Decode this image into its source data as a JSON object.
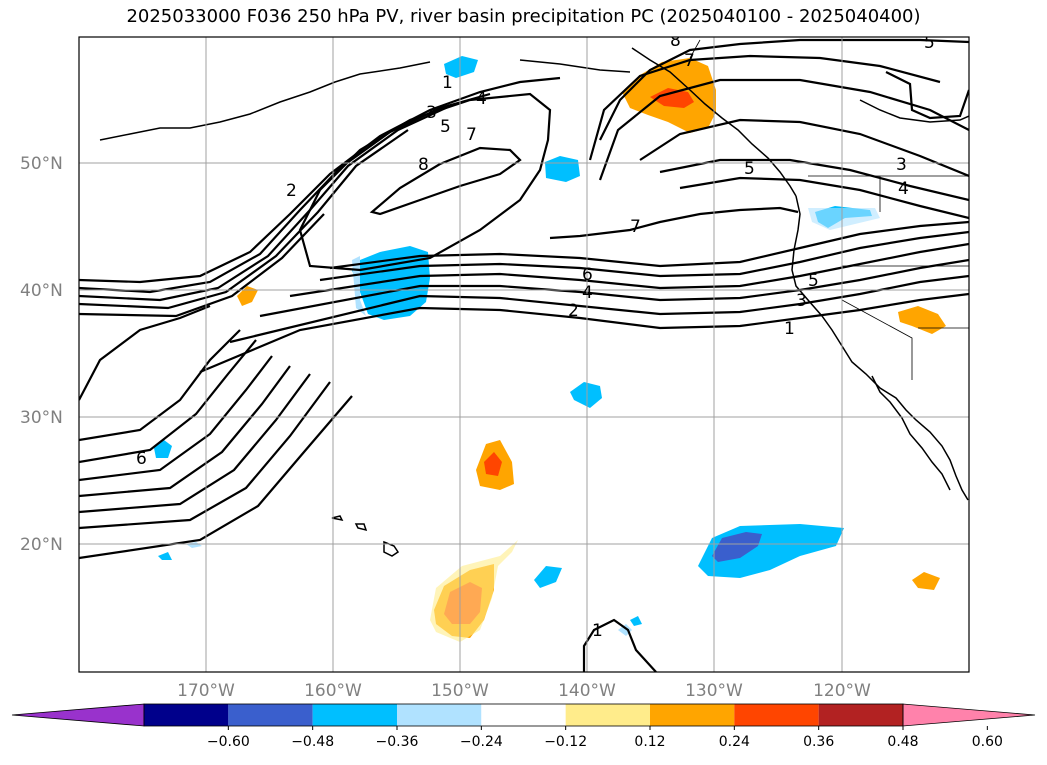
{
  "title": "2025033000 F036 250 hPa PV, river basin precipitation PC (2025040100 - 2025040400)",
  "axes": {
    "lon_ticks": [
      "170°W",
      "160°W",
      "150°W",
      "140°W",
      "130°W",
      "120°W"
    ],
    "lat_ticks": [
      "50°N",
      "40°N",
      "30°N",
      "20°N"
    ],
    "grid": true
  },
  "contour_labels": [
    "1",
    "2",
    "3",
    "4",
    "5",
    "6",
    "7",
    "8"
  ],
  "colorbar": {
    "ticks": [
      "−0.60",
      "−0.48",
      "−0.36",
      "−0.24",
      "−0.12",
      "0.12",
      "0.24",
      "0.36",
      "0.48",
      "0.60"
    ],
    "colors": [
      "#9932cc",
      "#00008b",
      "#3a5fcd",
      "#00bfff",
      "#b0e2ff",
      "#ffffff",
      "#ffec8b",
      "#ffa500",
      "#ff4500",
      "#b22222",
      "#ff82ab"
    ],
    "extend": "both"
  }
}
